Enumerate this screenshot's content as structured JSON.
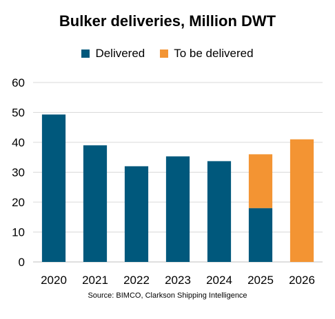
{
  "chart_data": {
    "type": "bar",
    "title": "Bulker deliveries, Million DWT",
    "categories": [
      "2020",
      "2021",
      "2022",
      "2023",
      "2024",
      "2025",
      "2026"
    ],
    "series": [
      {
        "name": "Delivered",
        "color": "#00587C",
        "values": [
          49.3,
          39.0,
          32.0,
          35.3,
          33.7,
          18.0,
          0
        ]
      },
      {
        "name": "To be delivered",
        "color": "#F39433",
        "values": [
          0,
          0,
          0,
          0,
          0,
          18.0,
          41.0
        ]
      }
    ],
    "stacked": true,
    "ylim": [
      0,
      60
    ],
    "yticks": [
      0,
      10,
      20,
      30,
      40,
      50,
      60
    ],
    "grid": true,
    "legend_position": "top"
  },
  "source": "Source: BIMCO, Clarkson Shipping Intelligence"
}
